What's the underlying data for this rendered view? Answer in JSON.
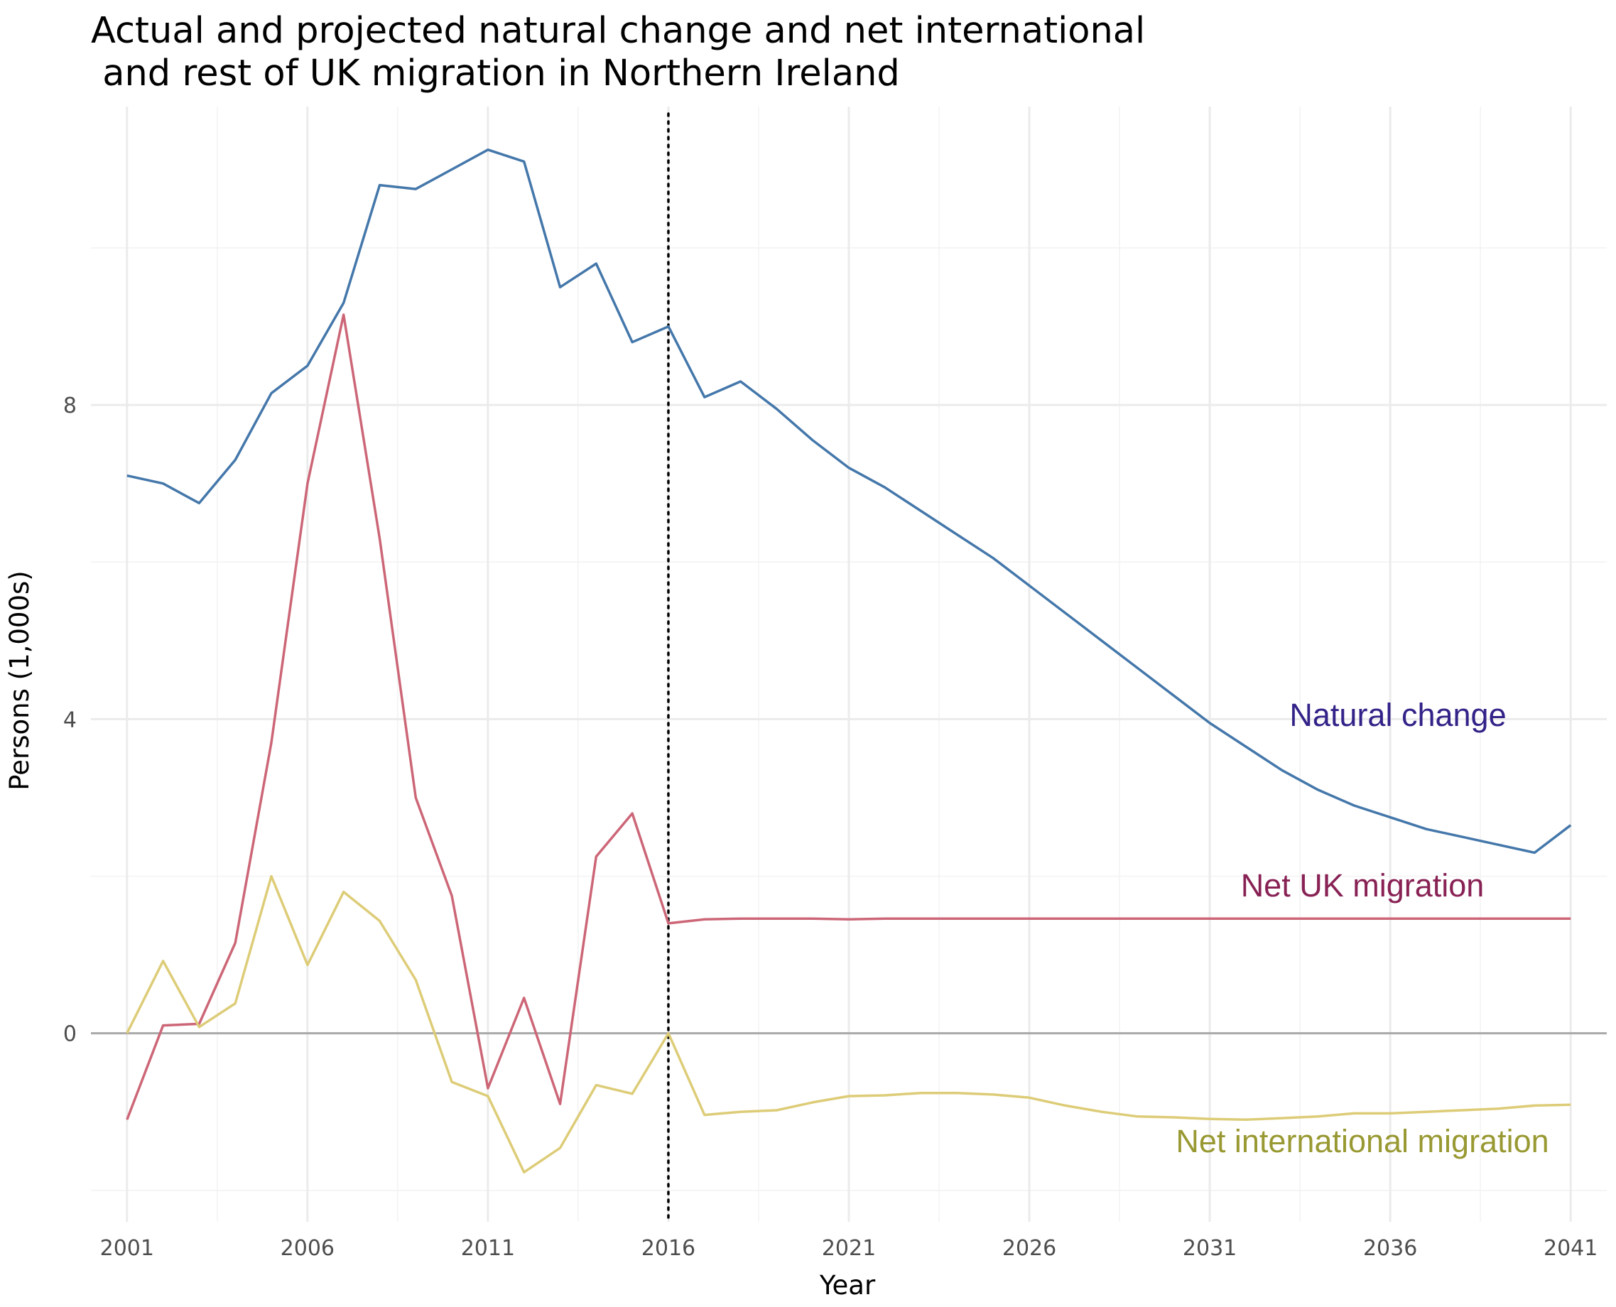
{
  "chart_data": {
    "type": "line",
    "title": "Actual and projected natural change and net international\n and rest of UK migration in Northern Ireland",
    "xlabel": "Year",
    "ylabel": "Persons (1,000s)",
    "xlim": [
      2000,
      2042
    ],
    "ylim": [
      -2.4,
      11.8
    ],
    "x_ticks": [
      2001,
      2006,
      2011,
      2016,
      2021,
      2026,
      2031,
      2036,
      2041
    ],
    "y_ticks": [
      0,
      4,
      8
    ],
    "grid": true,
    "reference_lines": {
      "horizontal_y": 0,
      "vertical_x": 2016,
      "vertical_style": "dotted"
    },
    "x": [
      2001,
      2002,
      2003,
      2004,
      2005,
      2006,
      2007,
      2008,
      2009,
      2010,
      2011,
      2012,
      2013,
      2014,
      2015,
      2016,
      2017,
      2018,
      2019,
      2020,
      2021,
      2022,
      2023,
      2024,
      2025,
      2026,
      2027,
      2028,
      2029,
      2030,
      2031,
      2032,
      2033,
      2034,
      2035,
      2036,
      2037,
      2038,
      2039,
      2040,
      2041
    ],
    "series": [
      {
        "name": "Natural change",
        "color": "#4477AA",
        "label_color": "#332288",
        "values": [
          7.1,
          7.0,
          6.75,
          7.3,
          8.15,
          8.5,
          9.3,
          10.8,
          10.75,
          11.0,
          11.25,
          11.1,
          9.5,
          9.8,
          8.8,
          9.0,
          8.1,
          8.3,
          7.95,
          7.55,
          7.2,
          6.95,
          6.65,
          6.35,
          6.05,
          5.7,
          5.35,
          5.0,
          4.65,
          4.3,
          3.95,
          3.65,
          3.35,
          3.1,
          2.9,
          2.75,
          2.6,
          2.5,
          2.4,
          2.3,
          2.65
        ]
      },
      {
        "name": "Net UK migration",
        "color": "#CC6677",
        "label_color": "#882255",
        "values": [
          -1.1,
          0.1,
          0.12,
          1.15,
          3.7,
          7.0,
          9.15,
          6.3,
          3.0,
          1.75,
          -0.7,
          0.45,
          -0.9,
          2.25,
          2.8,
          1.4,
          1.45,
          1.46,
          1.46,
          1.46,
          1.45,
          1.46,
          1.46,
          1.46,
          1.46,
          1.46,
          1.46,
          1.46,
          1.46,
          1.46,
          1.46,
          1.46,
          1.46,
          1.46,
          1.46,
          1.46,
          1.46,
          1.46,
          1.46,
          1.46,
          1.46
        ]
      },
      {
        "name": "Net international migration",
        "color": "#DDCC77",
        "label_color": "#999933",
        "values": [
          0.0,
          0.92,
          0.08,
          0.38,
          2.0,
          0.87,
          1.8,
          1.43,
          0.68,
          -0.62,
          -0.8,
          -1.77,
          -1.46,
          -0.66,
          -0.77,
          0.0,
          -1.04,
          -1.0,
          -0.98,
          -0.88,
          -0.8,
          -0.79,
          -0.76,
          -0.76,
          -0.78,
          -0.82,
          -0.92,
          -1.0,
          -1.06,
          -1.07,
          -1.09,
          -1.1,
          -1.08,
          -1.06,
          -1.02,
          -1.02,
          -1.0,
          -0.98,
          -0.96,
          -0.92,
          -0.91
        ]
      }
    ]
  }
}
